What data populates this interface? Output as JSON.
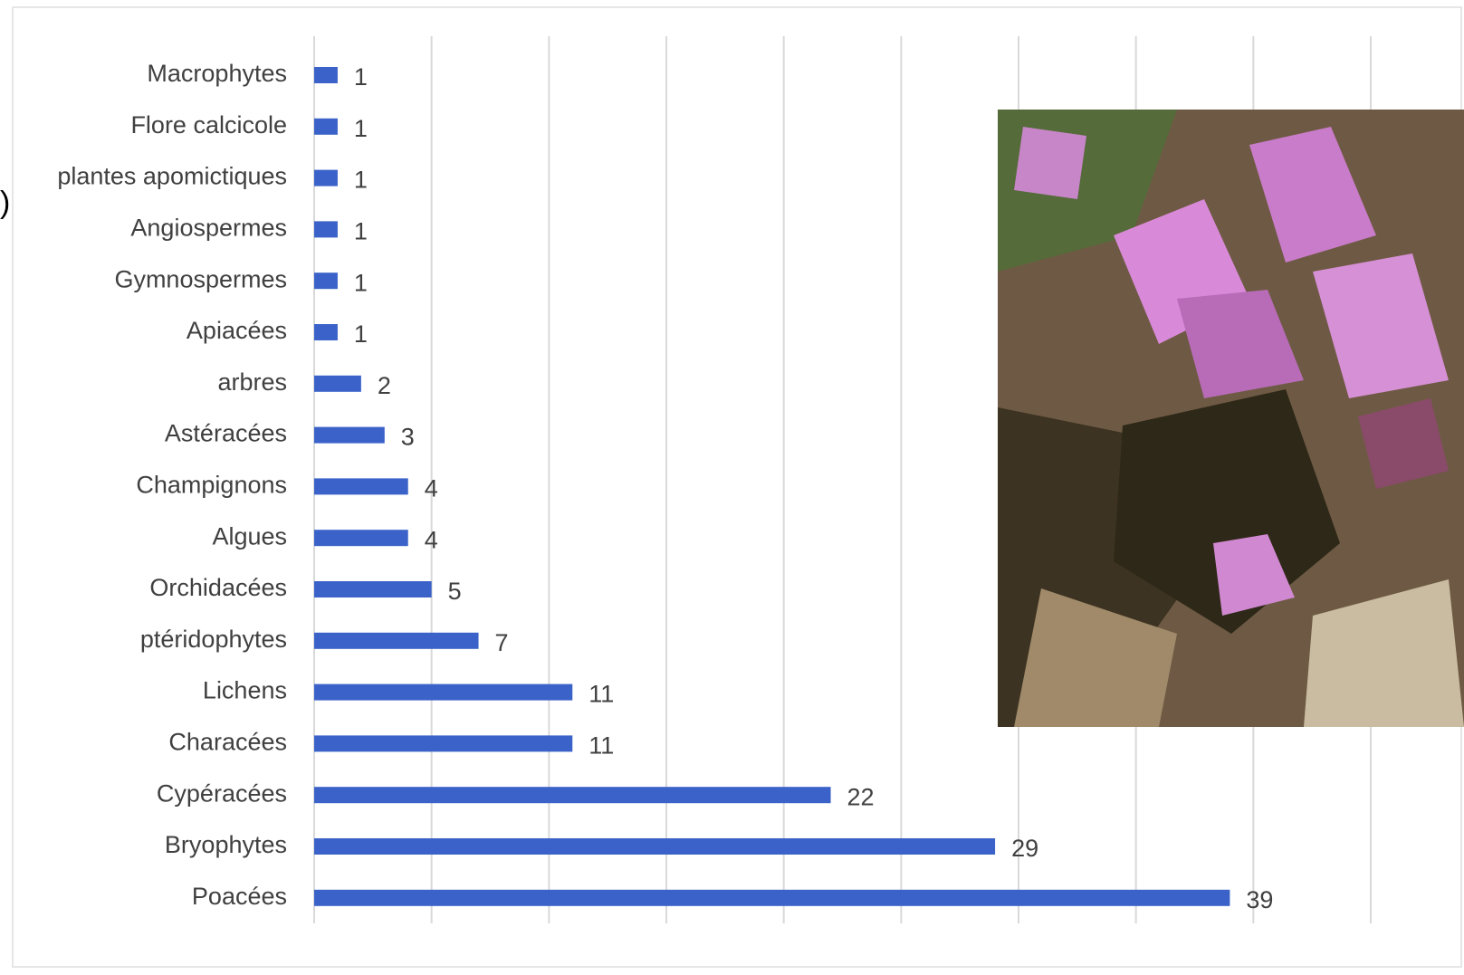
{
  "fragment": ")",
  "chart_data": {
    "type": "bar",
    "orientation": "horizontal",
    "categories": [
      "Macrophytes",
      "Flore calcicole",
      "plantes apomictiques",
      "Angiospermes",
      "Gymnospermes",
      "Apiacées",
      "arbres",
      "Astéracées",
      "Champignons",
      "Algues",
      "Orchidacées",
      "ptéridophytes",
      "Lichens",
      "Characées",
      "Cypéracées",
      "Bryophytes",
      "Poacées"
    ],
    "values": [
      1,
      1,
      1,
      1,
      1,
      1,
      2,
      3,
      4,
      4,
      5,
      7,
      11,
      11,
      22,
      29,
      39
    ],
    "color": "#3a62c8",
    "xlim": [
      0,
      45
    ],
    "xticks": [
      0,
      5,
      10,
      15,
      20,
      25,
      30,
      35,
      40,
      45
    ],
    "grid": true
  }
}
